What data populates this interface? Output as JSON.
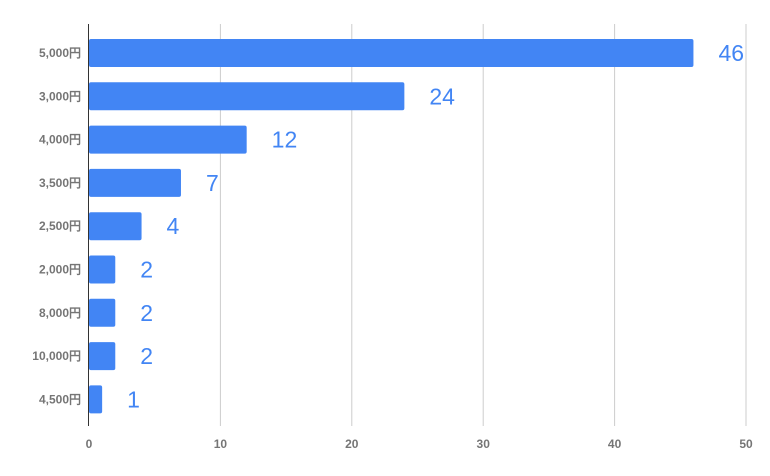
{
  "chart_data": {
    "type": "bar",
    "orientation": "horizontal",
    "categories": [
      "5,000円",
      "3,000円",
      "4,000円",
      "3,500円",
      "2,500円",
      "2,000円",
      "8,000円",
      "10,000円",
      "4,500円"
    ],
    "values": [
      46,
      24,
      12,
      7,
      4,
      2,
      2,
      2,
      1
    ],
    "title": "",
    "xlabel": "",
    "ylabel": "",
    "xlim": [
      0,
      50
    ],
    "x_ticks": [
      "0",
      "10",
      "20",
      "30",
      "40",
      "50"
    ],
    "grid": true,
    "data_labels": true,
    "colors": {
      "bar": "#4285F4",
      "label": "#4285F4",
      "axis_text": "#757575",
      "grid": "#CCCCCC",
      "axis": "#333333"
    }
  }
}
